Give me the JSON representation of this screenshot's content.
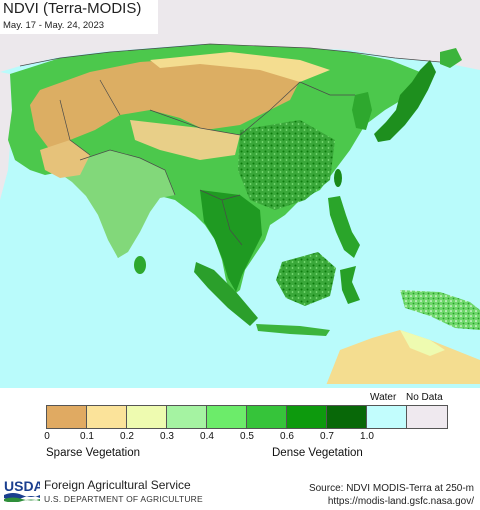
{
  "map": {
    "title": "NDVI (Terra-MODIS)",
    "date_range": "May. 17 - May. 24, 2023",
    "colors": {
      "water": "#b9fbfb",
      "no_data": "#ece8ec",
      "desert": "#d8a85e",
      "sparse": "#f4dd90",
      "mid": "#69e26b",
      "dense": "#0a7d0a",
      "border": "#4a4a4a"
    }
  },
  "legend": {
    "water_label": "Water",
    "no_data_label": "No Data",
    "ticks": [
      "0",
      "0.1",
      "0.2",
      "0.3",
      "0.4",
      "0.5",
      "0.6",
      "0.7",
      "1.0"
    ],
    "swatches": [
      "#e0aa62",
      "#fbe39a",
      "#eefbb0",
      "#a5f3a2",
      "#6cec6a",
      "#36c43a",
      "#0d9a0d",
      "#086808",
      "#c2fdfd",
      "#efe9ef"
    ],
    "sparse_label": "Sparse Vegetation",
    "dense_label": "Dense Vegetation"
  },
  "footer": {
    "logo_text": "USDA",
    "agency": "Foreign Agricultural Service",
    "department": "U.S. DEPARTMENT OF AGRICULTURE",
    "source_line1": "Source: NDVI MODIS-Terra at 250-m",
    "source_line2": "https://modis-land.gsfc.nasa.gov/"
  }
}
